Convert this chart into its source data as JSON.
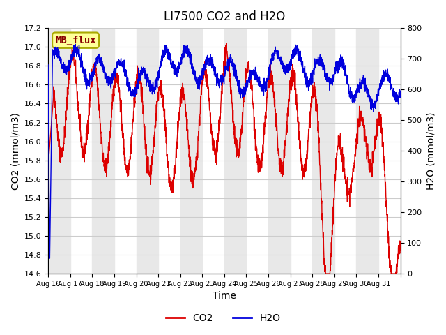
{
  "title": "LI7500 CO2 and H2O",
  "xlabel": "Time",
  "ylabel_left": "CO2 (mmol/m3)",
  "ylabel_right": "H2O (mmol/m3)",
  "ylim_left": [
    14.6,
    17.2
  ],
  "ylim_right": [
    0,
    800
  ],
  "yticks_left": [
    14.6,
    14.8,
    15.0,
    15.2,
    15.4,
    15.6,
    15.8,
    16.0,
    16.2,
    16.4,
    16.6,
    16.8,
    17.0,
    17.2
  ],
  "yticks_right": [
    0,
    100,
    200,
    300,
    400,
    500,
    600,
    700,
    800
  ],
  "xtick_positions": [
    0,
    1,
    2,
    3,
    4,
    5,
    6,
    7,
    8,
    9,
    10,
    11,
    12,
    13,
    14,
    15,
    16
  ],
  "xtick_labels": [
    "Aug 16",
    "Aug 17",
    "Aug 18",
    "Aug 19",
    "Aug 20",
    "Aug 21",
    "Aug 22",
    "Aug 23",
    "Aug 24",
    "Aug 25",
    "Aug 26",
    "Aug 27",
    "Aug 28",
    "Aug 29",
    "Aug 30",
    "Aug 31",
    ""
  ],
  "n_days": 16,
  "legend_co2": "CO2",
  "legend_h2o": "H2O",
  "co2_color": "#dd0000",
  "h2o_color": "#0000dd",
  "label_box_color": "#ffff99",
  "label_box_edge": "#aaaa00",
  "label_text": "MB_flux",
  "label_text_color": "#880000",
  "bg_color": "#ffffff",
  "grid_color": "#cccccc",
  "band_color": "#e8e8e8"
}
